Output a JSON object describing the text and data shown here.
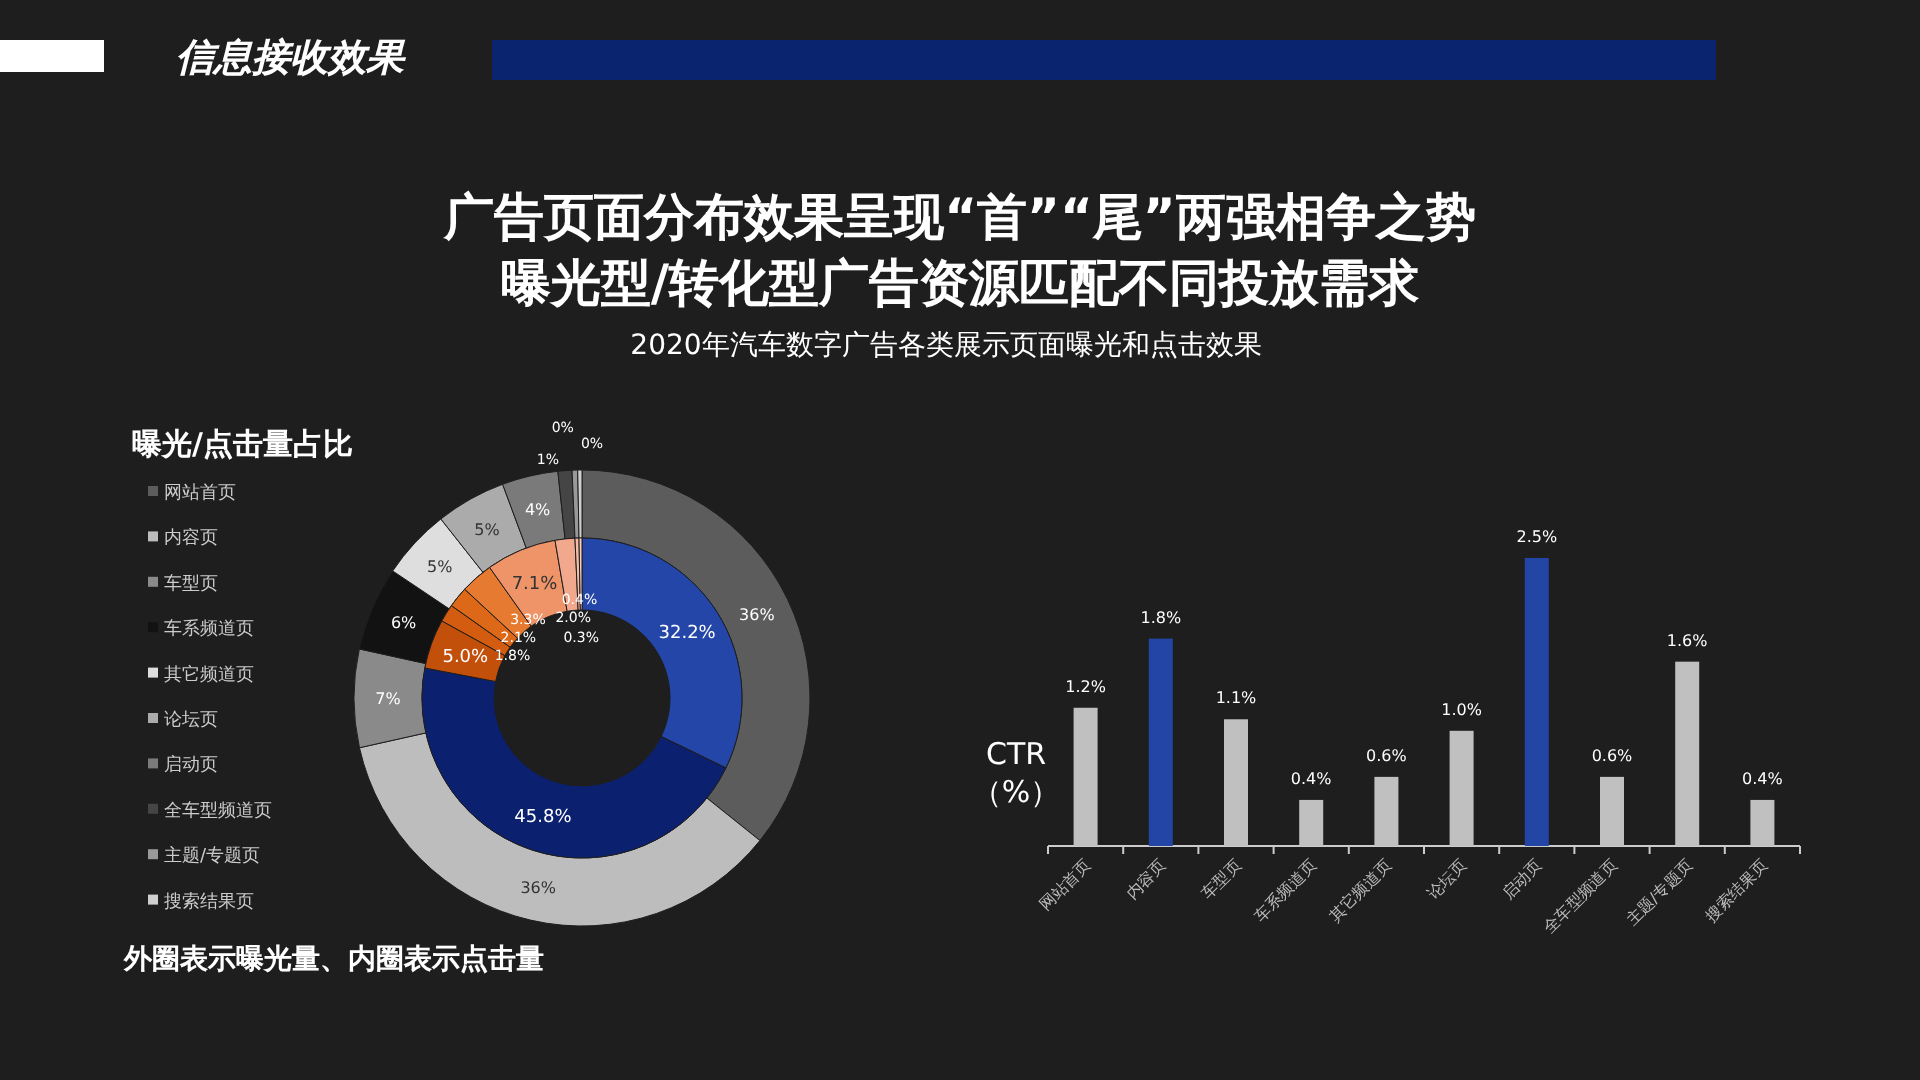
{
  "chart_data": [
    {
      "type": "other",
      "title": "信息接收效果",
      "subtitle": "2020年汽车数字广告各类展示页面曝光和点击效果",
      "annotations": [
        "广告页面分布效果呈现“首”“尾”两强相争之势",
        "曝光型/转化型广告资源匹配不同投放需求"
      ]
    },
    {
      "type": "donut",
      "title": "曝光/点击量占比",
      "legend": "left",
      "categories": [
        "网站首页",
        "内容页",
        "车型页",
        "车系频道页",
        "其它频道页",
        "论坛页",
        "启动页",
        "全车型频道页",
        "主题/专题页",
        "搜索结果页"
      ],
      "series": [
        {
          "values": [
            36,
            36,
            7,
            6,
            5,
            5,
            4,
            1,
            0.4,
            0.3
          ],
          "colors": [
            "#5c5c5c",
            "#bdbdbd",
            "#8a8a8a",
            "#121212",
            "#dedede",
            "#ababab",
            "#7a7a7a",
            "#454545",
            "#999999",
            "#cfcfcf"
          ],
          "value_labels": [
            "36%",
            "36%",
            "7%",
            "6%",
            "5%",
            "5%",
            "4%",
            "1%",
            "0%",
            "0%"
          ]
        },
        {
          "values": [
            32.2,
            45.8,
            5.0,
            1.8,
            2.1,
            3.3,
            7.1,
            2.0,
            0.4,
            0.3
          ],
          "colors": [
            "#2446a8",
            "#0b2170",
            "#c24f0a",
            "#d45c10",
            "#dd6818",
            "#e57a30",
            "#ef9468",
            "#f2a88c",
            "#f5bca6",
            "#f8cdbb"
          ],
          "value_labels": [
            "32.2%",
            "45.8%",
            "5.0%",
            "1.8%",
            "2.1%",
            "3.3%",
            "7.1%",
            "2.0%",
            "0.4%",
            "0.3%"
          ]
        }
      ],
      "annotations": [
        "外圈表示曝光量、内圈表示点击量"
      ]
    },
    {
      "type": "bar",
      "ylabel": "CTR（%）",
      "categories": [
        "网站首页",
        "内容页",
        "车型页",
        "车系频道页",
        "其它频道页",
        "论坛页",
        "启动页",
        "全车型频道页",
        "主题/专题页",
        "搜索结果页"
      ],
      "values": [
        1.2,
        1.8,
        1.1,
        0.4,
        0.6,
        1.0,
        2.5,
        0.6,
        1.6,
        0.4
      ],
      "colors": [
        "#c0c0c0",
        "#2346a6",
        "#c0c0c0",
        "#c0c0c0",
        "#c0c0c0",
        "#c0c0c0",
        "#2346a6",
        "#c0c0c0",
        "#c0c0c0",
        "#c0c0c0"
      ],
      "value_labels": [
        "1.2%",
        "1.8%",
        "1.1%",
        "0.4%",
        "0.6%",
        "1.0%",
        "2.5%",
        "0.6%",
        "1.6%",
        "0.4%"
      ]
    }
  ]
}
